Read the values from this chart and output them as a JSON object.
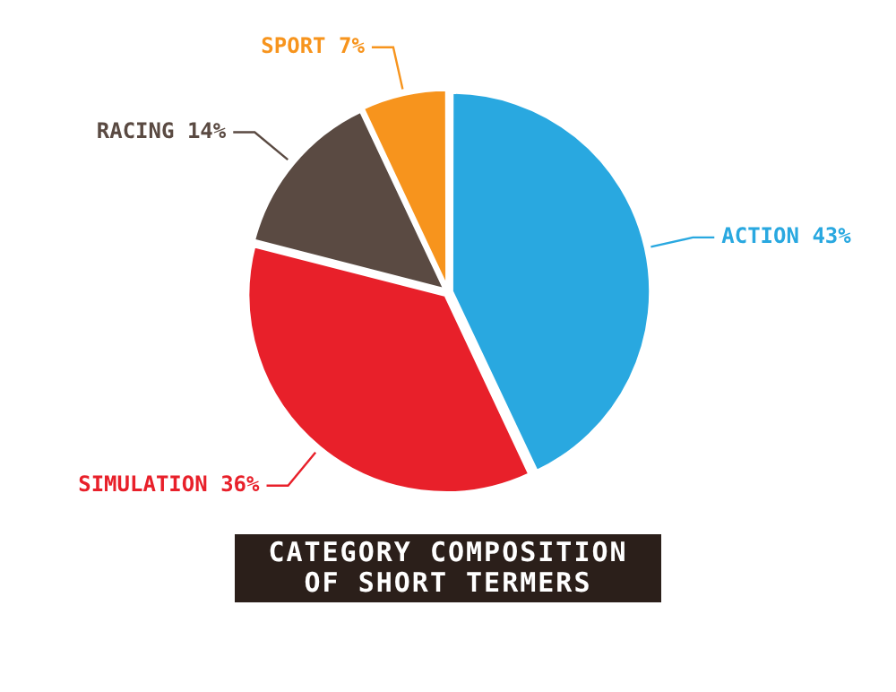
{
  "chart_data": {
    "type": "pie",
    "title": "CATEGORY COMPOSITION OF SHORT TERMERS",
    "categories": [
      "ACTION",
      "SIMULATION",
      "RACING",
      "SPORT"
    ],
    "values": [
      43,
      36,
      14,
      7
    ],
    "value_labels": [
      "43%",
      "36%",
      "14%",
      "7%"
    ],
    "colors": [
      "#29a8e0",
      "#e8202a",
      "#5a4a42",
      "#f7941d"
    ],
    "legend": false
  }
}
